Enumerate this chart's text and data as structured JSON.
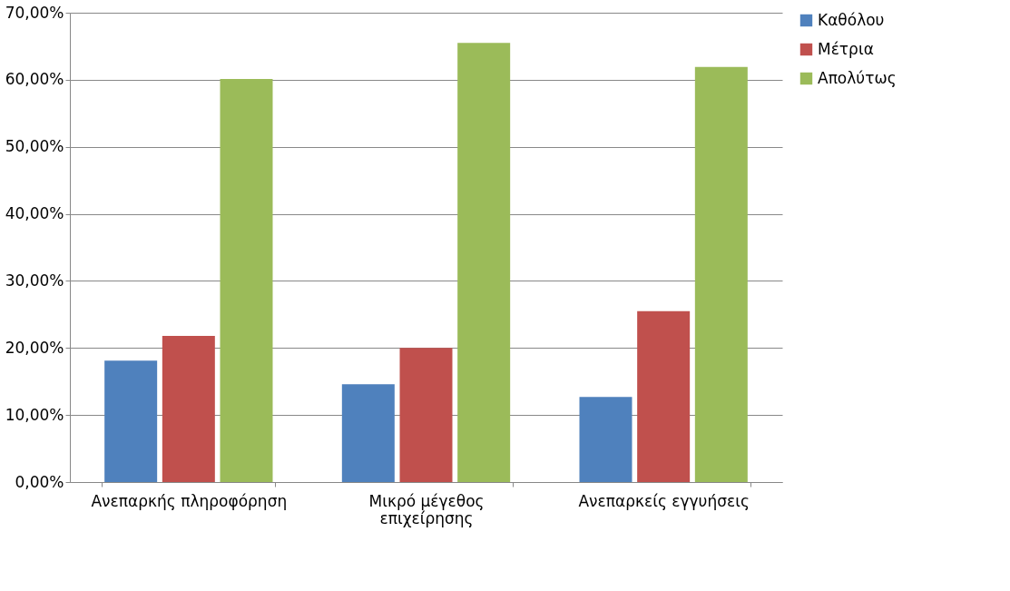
{
  "chart_data": {
    "type": "bar",
    "categories": [
      "Ανεπαρκής πληροφόρηση",
      "Μικρό μέγεθος επιχείρησης",
      "Ανεπαρκείς εγγυήσεις"
    ],
    "series": [
      {
        "name": "Καθόλου",
        "color": "#4f81bd",
        "values": [
          18.1,
          14.6,
          12.7
        ]
      },
      {
        "name": "Μέτρια",
        "color": "#c0504d",
        "values": [
          21.8,
          20.0,
          25.5
        ]
      },
      {
        "name": "Απολύτως",
        "color": "#9bbb59",
        "values": [
          60.1,
          65.5,
          61.9
        ]
      }
    ],
    "ylim": [
      0,
      70
    ],
    "yticks": [
      {
        "value": 0,
        "label": "0,00%"
      },
      {
        "value": 10,
        "label": "10,00%"
      },
      {
        "value": 20,
        "label": "20,00%"
      },
      {
        "value": 30,
        "label": "30,00%"
      },
      {
        "value": 40,
        "label": "40,00%"
      },
      {
        "value": 50,
        "label": "50,00%"
      },
      {
        "value": 60,
        "label": "60,00%"
      },
      {
        "value": 70,
        "label": "70,00%"
      }
    ],
    "grid": "y",
    "legend": "right"
  }
}
